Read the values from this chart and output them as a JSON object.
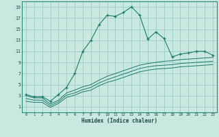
{
  "title": "",
  "xlabel": "Humidex (Indice chaleur)",
  "xlim": [
    -0.5,
    23.5
  ],
  "ylim": [
    0,
    20
  ],
  "xticks": [
    0,
    1,
    2,
    3,
    4,
    5,
    6,
    7,
    8,
    9,
    10,
    11,
    12,
    13,
    14,
    15,
    16,
    17,
    18,
    19,
    20,
    21,
    22,
    23
  ],
  "yticks": [
    1,
    3,
    5,
    7,
    9,
    11,
    13,
    15,
    17,
    19
  ],
  "background_color": "#c8e8e0",
  "grid_color": "#9ecece",
  "line_color": "#1a7a6a",
  "main_x": [
    0,
    1,
    2,
    3,
    4,
    5,
    6,
    7,
    8,
    9,
    10,
    11,
    12,
    13,
    14,
    15,
    16,
    17,
    18,
    19,
    20,
    21,
    22,
    23
  ],
  "main_y": [
    3.2,
    2.8,
    2.8,
    2.0,
    3.2,
    4.5,
    7.0,
    11.0,
    13.0,
    15.8,
    17.5,
    17.3,
    18.0,
    19.0,
    17.5,
    13.2,
    14.5,
    13.3,
    10.0,
    10.5,
    10.7,
    11.0,
    11.0,
    10.3
  ],
  "band1_x": [
    0,
    1,
    2,
    3,
    4,
    5,
    6,
    7,
    8,
    9,
    10,
    11,
    12,
    13,
    14,
    15,
    16,
    17,
    18,
    19,
    20,
    21,
    22,
    23
  ],
  "band1_y": [
    3.0,
    2.6,
    2.6,
    1.5,
    2.2,
    3.5,
    4.0,
    4.6,
    5.0,
    5.8,
    6.5,
    7.0,
    7.5,
    8.0,
    8.5,
    8.8,
    9.0,
    9.2,
    9.3,
    9.5,
    9.6,
    9.7,
    9.8,
    9.9
  ],
  "band2_x": [
    0,
    1,
    2,
    3,
    4,
    5,
    6,
    7,
    8,
    9,
    10,
    11,
    12,
    13,
    14,
    15,
    16,
    17,
    18,
    19,
    20,
    21,
    22,
    23
  ],
  "band2_y": [
    2.5,
    2.2,
    2.2,
    1.2,
    1.9,
    3.1,
    3.5,
    4.1,
    4.5,
    5.3,
    5.9,
    6.4,
    6.9,
    7.4,
    7.9,
    8.2,
    8.4,
    8.5,
    8.6,
    8.8,
    8.9,
    9.0,
    9.1,
    9.2
  ],
  "band3_x": [
    0,
    1,
    2,
    3,
    4,
    5,
    6,
    7,
    8,
    9,
    10,
    11,
    12,
    13,
    14,
    15,
    16,
    17,
    18,
    19,
    20,
    21,
    22,
    23
  ],
  "band3_y": [
    2.0,
    1.8,
    1.8,
    0.9,
    1.6,
    2.7,
    3.1,
    3.7,
    4.0,
    4.8,
    5.4,
    5.8,
    6.3,
    6.8,
    7.3,
    7.6,
    7.8,
    7.9,
    8.0,
    8.2,
    8.3,
    8.4,
    8.5,
    8.6
  ]
}
